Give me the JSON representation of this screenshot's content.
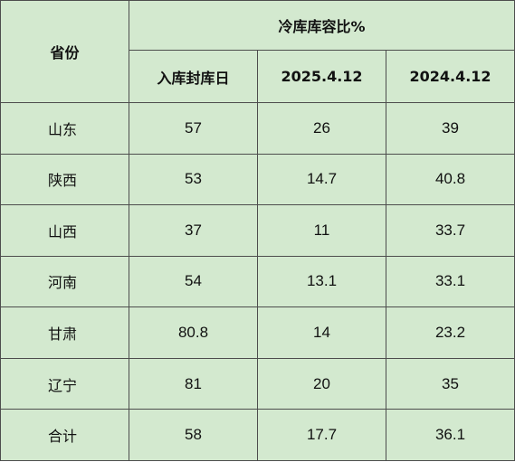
{
  "table": {
    "header": {
      "province": "省份",
      "group": "冷库库容比%",
      "columns": [
        "入库封库日",
        "2025.4.12",
        "2024.4.12"
      ]
    },
    "rows": [
      {
        "province": "山东",
        "values": [
          "57",
          "26",
          "39"
        ]
      },
      {
        "province": "陕西",
        "values": [
          "53",
          "14.7",
          "40.8"
        ]
      },
      {
        "province": "山西",
        "values": [
          "37",
          "11",
          "33.7"
        ]
      },
      {
        "province": "河南",
        "values": [
          "54",
          "13.1",
          "33.1"
        ]
      },
      {
        "province": "甘肃",
        "values": [
          "80.8",
          "14",
          "23.2"
        ]
      },
      {
        "province": "辽宁",
        "values": [
          "81",
          "20",
          "35"
        ]
      },
      {
        "province": "合计",
        "values": [
          "58",
          "17.7",
          "36.1"
        ]
      }
    ]
  },
  "colors": {
    "cell_background": "#d3e9cf",
    "border": "#4d4d4d"
  }
}
